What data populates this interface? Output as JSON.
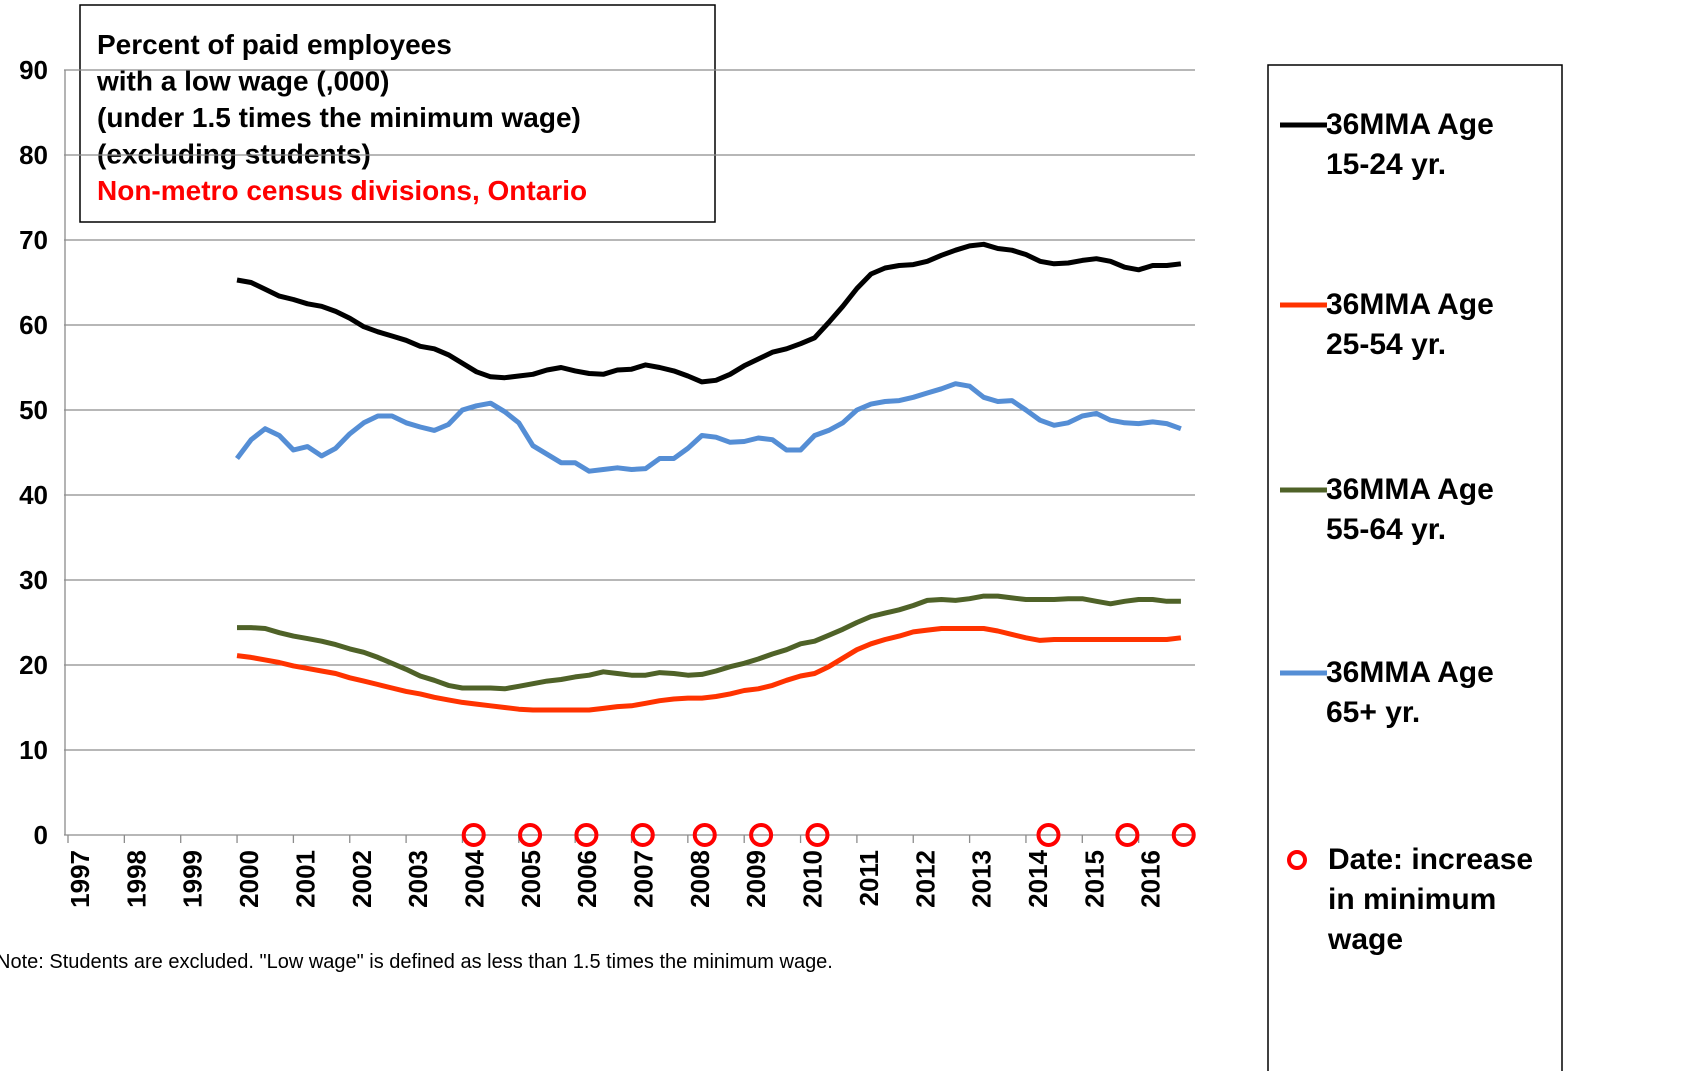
{
  "chart_data": {
    "type": "line",
    "title_lines": [
      "Percent of paid employees",
      "with a low wage (,000)",
      "(under 1.5 times the minimum wage)",
      "(excluding students)"
    ],
    "subtitle": "Non-metro census divisions, Ontario",
    "note": "Note: Students are excluded. \"Low wage\" is defined as less than 1.5 times the minimum wage.",
    "x": [
      2000,
      2000.25,
      2000.5,
      2000.75,
      2001,
      2001.25,
      2001.5,
      2001.75,
      2002,
      2002.25,
      2002.5,
      2002.75,
      2003,
      2003.25,
      2003.5,
      2003.75,
      2004,
      2004.25,
      2004.5,
      2004.75,
      2005,
      2005.25,
      2005.5,
      2005.75,
      2006,
      2006.25,
      2006.5,
      2006.75,
      2007,
      2007.25,
      2007.5,
      2007.75,
      2008,
      2008.25,
      2008.5,
      2008.75,
      2009,
      2009.25,
      2009.5,
      2009.75,
      2010,
      2010.25,
      2010.5,
      2010.75,
      2011,
      2011.25,
      2011.5,
      2011.75,
      2012,
      2012.25,
      2012.5,
      2012.75,
      2013,
      2013.25,
      2013.5,
      2013.75,
      2014,
      2014.25,
      2014.5,
      2014.75,
      2015,
      2015.25,
      2015.5,
      2015.75,
      2016,
      2016.25,
      2016.5,
      2016.75
    ],
    "series": [
      {
        "name": "36MMA Age 15-24 yr.",
        "color": "#000000",
        "values": [
          65.3,
          65,
          64.2,
          63.4,
          63,
          62.5,
          62.2,
          61.6,
          60.8,
          59.8,
          59.2,
          58.7,
          58.2,
          57.5,
          57.2,
          56.5,
          55.5,
          54.5,
          53.9,
          53.8,
          54,
          54.2,
          54.7,
          55,
          54.6,
          54.3,
          54.2,
          54.7,
          54.8,
          55.3,
          55,
          54.6,
          54,
          53.3,
          53.5,
          54.2,
          55.2,
          56,
          56.8,
          57.2,
          57.8,
          58.5,
          60.3,
          62.2,
          64.3,
          66,
          66.7,
          67,
          67.1,
          67.5,
          68.2,
          68.8,
          69.3,
          69.5,
          69,
          68.8,
          68.3,
          67.5,
          67.2,
          67.3,
          67.6,
          67.8,
          67.5,
          66.8,
          66.5,
          67,
          67,
          67.2
        ]
      },
      {
        "name": "36MMA Age 25-54 yr.",
        "color": "#ff3300",
        "values": [
          21.1,
          20.9,
          20.6,
          20.3,
          19.9,
          19.6,
          19.3,
          19,
          18.5,
          18.1,
          17.7,
          17.3,
          16.9,
          16.6,
          16.2,
          15.9,
          15.6,
          15.4,
          15.2,
          15,
          14.8,
          14.7,
          14.7,
          14.7,
          14.7,
          14.7,
          14.9,
          15.1,
          15.2,
          15.5,
          15.8,
          16,
          16.1,
          16.1,
          16.3,
          16.6,
          17,
          17.2,
          17.6,
          18.2,
          18.7,
          19,
          19.8,
          20.8,
          21.8,
          22.5,
          23,
          23.4,
          23.9,
          24.1,
          24.3,
          24.3,
          24.3,
          24.3,
          24,
          23.6,
          23.2,
          22.9,
          23,
          23,
          23,
          23,
          23,
          23,
          23,
          23,
          23,
          23.2
        ]
      },
      {
        "name": "36MMA Age 55-64 yr.",
        "color": "#4f6228",
        "values": [
          24.4,
          24.4,
          24.3,
          23.8,
          23.4,
          23.1,
          22.8,
          22.4,
          21.9,
          21.5,
          20.9,
          20.2,
          19.5,
          18.7,
          18.2,
          17.6,
          17.3,
          17.3,
          17.3,
          17.2,
          17.5,
          17.8,
          18.1,
          18.3,
          18.6,
          18.8,
          19.2,
          19,
          18.8,
          18.8,
          19.1,
          19,
          18.8,
          18.9,
          19.3,
          19.8,
          20.2,
          20.7,
          21.3,
          21.8,
          22.5,
          22.8,
          23.5,
          24.2,
          25,
          25.7,
          26.1,
          26.5,
          27,
          27.6,
          27.7,
          27.6,
          27.8,
          28.1,
          28.1,
          27.9,
          27.7,
          27.7,
          27.7,
          27.8,
          27.8,
          27.5,
          27.2,
          27.5,
          27.7,
          27.7,
          27.5,
          27.5
        ]
      },
      {
        "name": "36MMA Age 65+ yr.",
        "color": "#558ed5",
        "values": [
          44.3,
          46.5,
          47.8,
          47,
          45.3,
          45.7,
          44.6,
          45.5,
          47.2,
          48.5,
          49.3,
          49.3,
          48.5,
          48,
          47.6,
          48.3,
          50,
          50.5,
          50.8,
          49.8,
          48.5,
          45.8,
          44.8,
          43.8,
          43.8,
          42.8,
          43,
          43.2,
          43,
          43.1,
          44.3,
          44.3,
          45.5,
          47,
          46.8,
          46.2,
          46.3,
          46.7,
          46.5,
          45.3,
          45.3,
          47,
          47.6,
          48.5,
          50,
          50.7,
          51,
          51.1,
          51.5,
          52,
          52.5,
          53.1,
          52.8,
          51.5,
          51,
          51.1,
          50,
          48.8,
          48.2,
          48.5,
          49.3,
          49.6,
          48.8,
          48.5,
          48.4,
          48.6,
          48.4,
          47.8
        ]
      },
      {
        "name": "Date: increase in minimum wage",
        "color": "#ff0000",
        "x": [
          2004.2,
          2005.2,
          2006.2,
          2007.2,
          2008.3,
          2009.3,
          2010.3,
          2014.4,
          2015.8,
          2016.8
        ],
        "values": [
          0,
          0,
          0,
          0,
          0,
          0,
          0,
          0,
          0,
          0
        ]
      }
    ],
    "xlim": [
      1997,
      2017
    ],
    "xticks": [
      1997,
      1998,
      1999,
      2000,
      2001,
      2002,
      2003,
      2004,
      2005,
      2006,
      2007,
      2008,
      2009,
      2010,
      2011,
      2012,
      2013,
      2014,
      2015,
      2016
    ],
    "ylim": [
      0,
      90
    ],
    "yticks": [
      0,
      10,
      20,
      30,
      40,
      50,
      60,
      70,
      80,
      90
    ],
    "grid": true
  }
}
